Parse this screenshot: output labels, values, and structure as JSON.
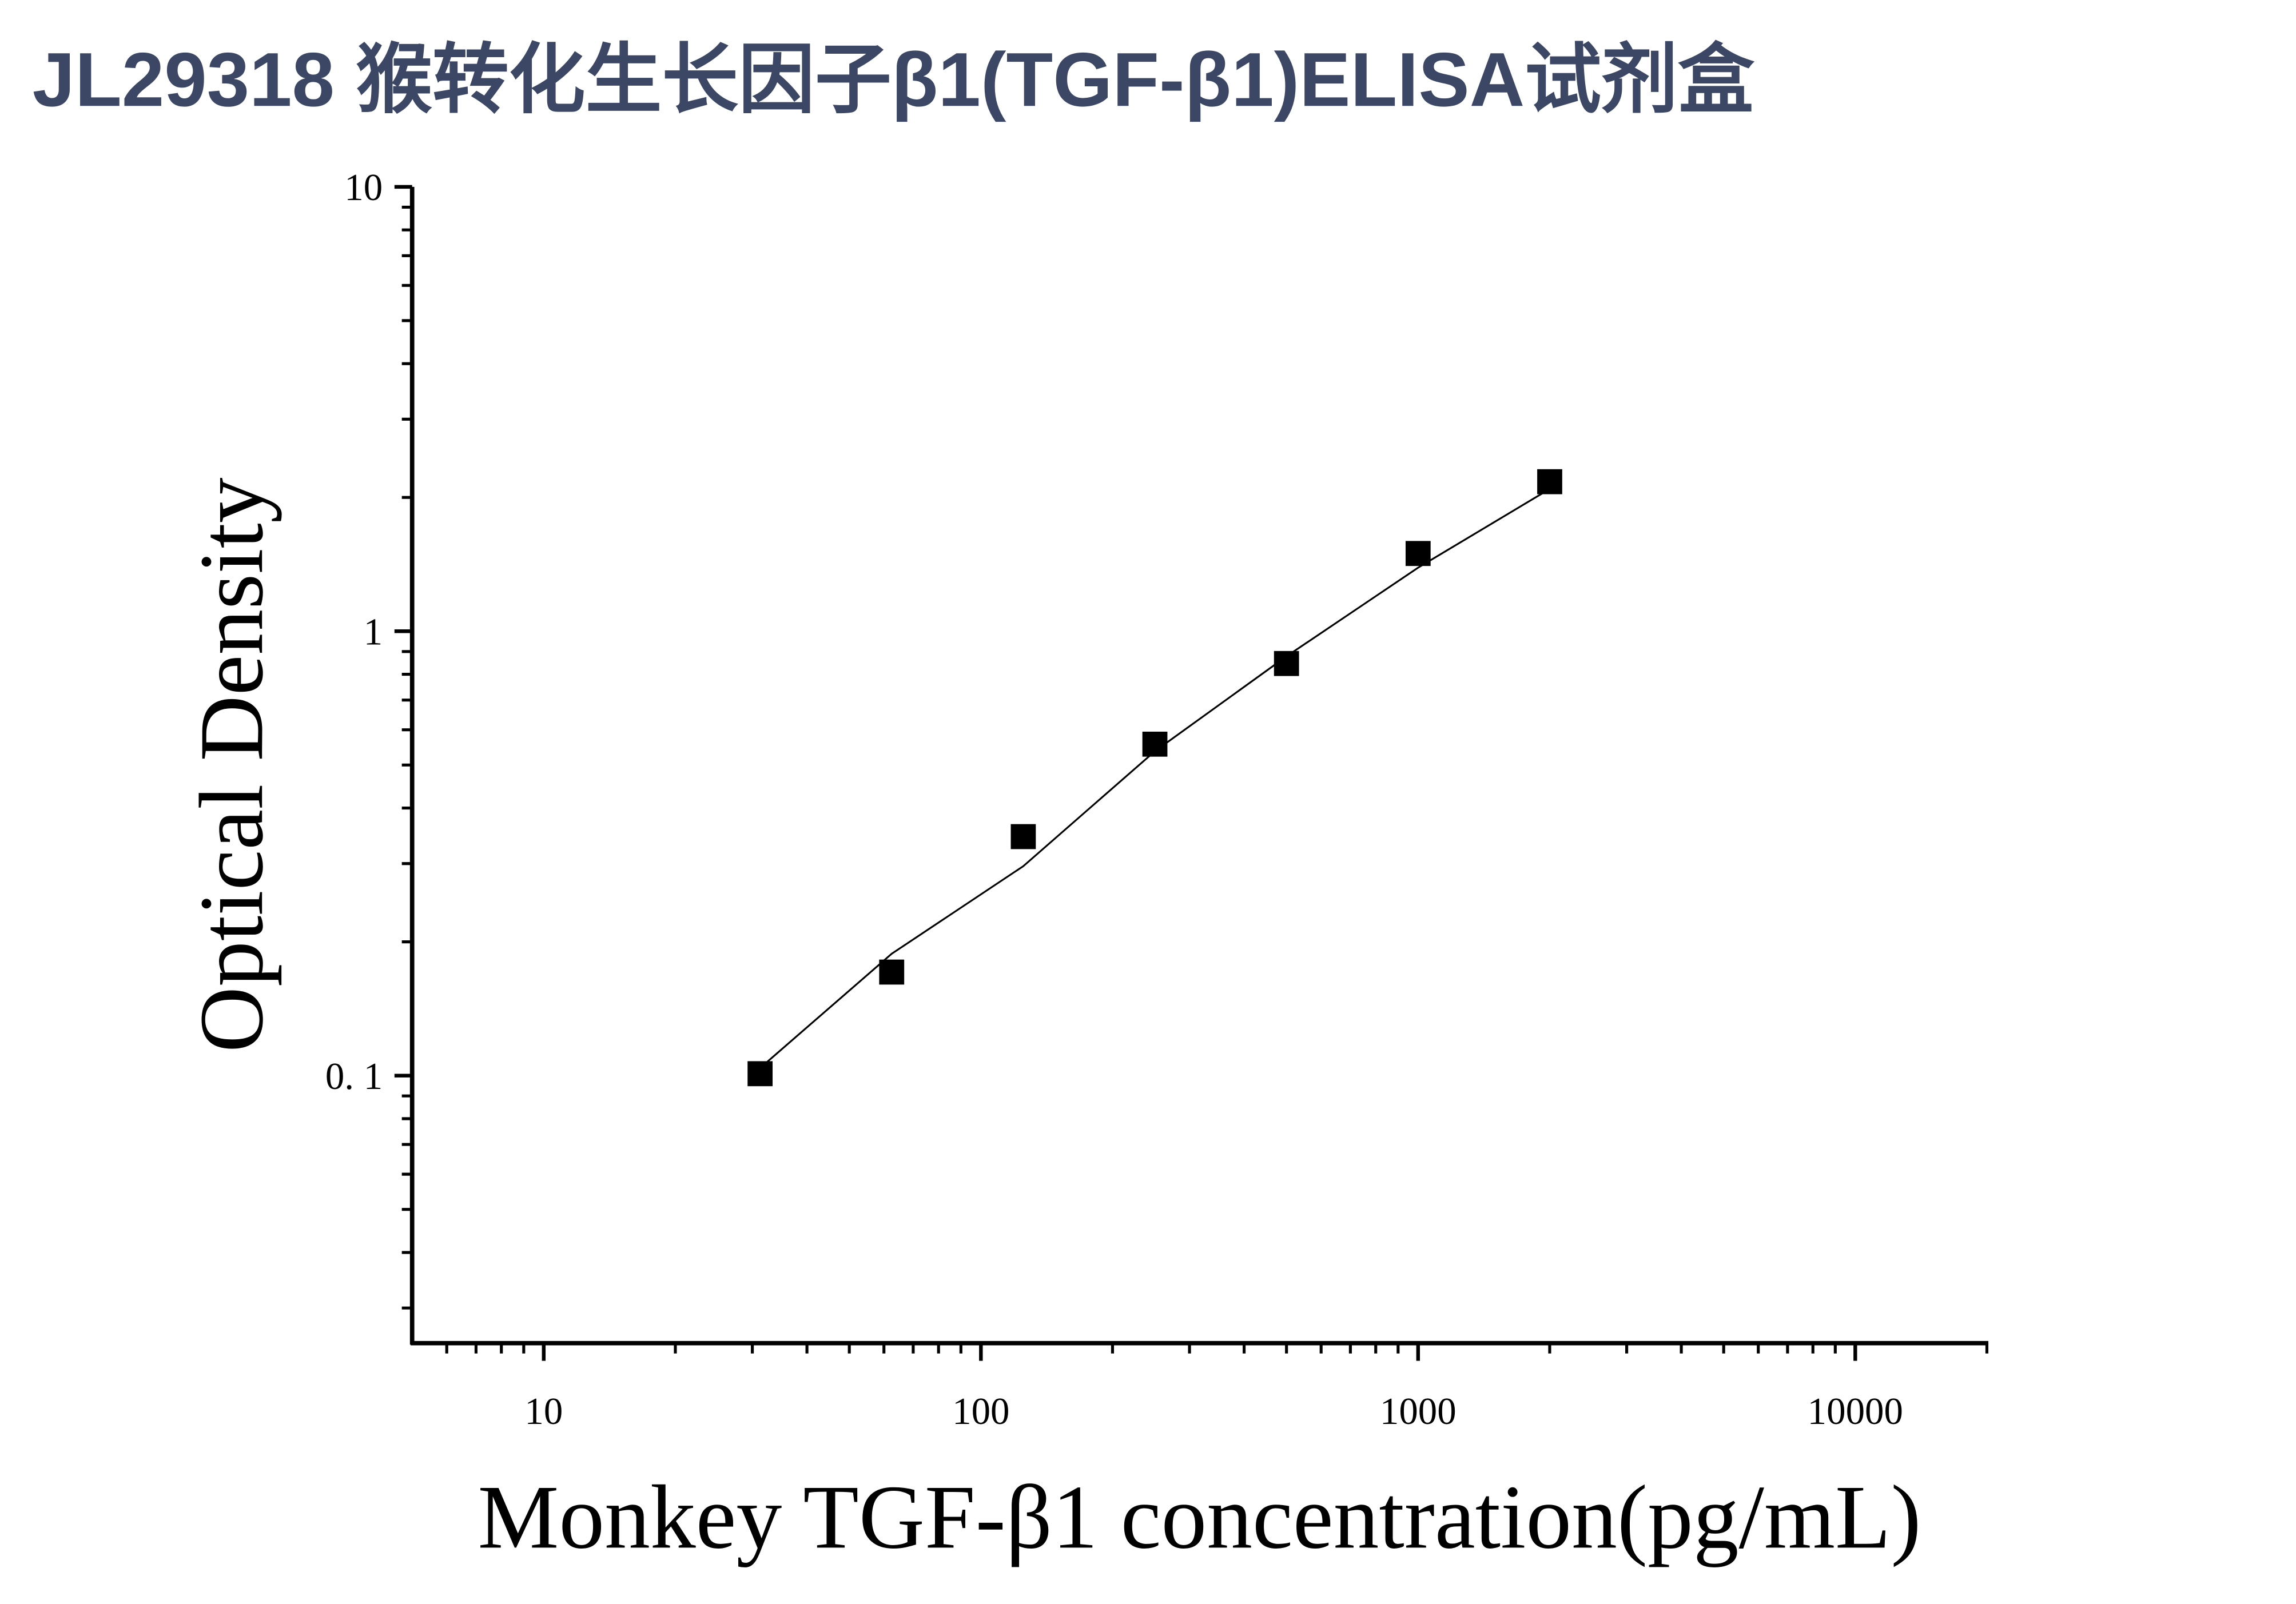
{
  "chart_data": {
    "type": "scatter",
    "title": "JL29318 猴转化生长因子β1(TGF-β1)ELISA试剂盒",
    "x_label": "Monkey TGF-β1 concentration(pg/mL)",
    "y_label": "Optical Density",
    "log_x": true,
    "log_y": true,
    "xlim": [
      5,
      20000
    ],
    "ylim": [
      0.025,
      10
    ],
    "xticks": [
      10,
      100,
      1000,
      10000
    ],
    "yticks": [
      {
        "value": 0.1,
        "label": "0. 1"
      },
      1,
      10
    ],
    "xminor": [
      6,
      7,
      8,
      9,
      20,
      30,
      40,
      50,
      60,
      70,
      80,
      90,
      200,
      300,
      400,
      500,
      600,
      700,
      800,
      900,
      2000,
      3000,
      4000,
      5000,
      6000,
      7000,
      8000,
      9000,
      20000
    ],
    "yminor": [
      0.03,
      0.04,
      0.05,
      0.06,
      0.07,
      0.08,
      0.09,
      0.2,
      0.3,
      0.4,
      0.5,
      0.6,
      0.7,
      0.8,
      0.9,
      2,
      3,
      4,
      5,
      6,
      7,
      8,
      9
    ],
    "color": "#000000",
    "x": [
      31.25,
      62.5,
      125,
      250,
      500,
      1000,
      2000
    ],
    "values": [
      0.101,
      0.171,
      0.345,
      0.557,
      0.846,
      1.496,
      2.17
    ],
    "fit": {
      "x": [
        31.25,
        62.5,
        125,
        250,
        500,
        1000,
        2000
      ],
      "values": [
        0.104,
        0.188,
        0.296,
        0.537,
        0.878,
        1.39,
        2.09
      ]
    }
  }
}
